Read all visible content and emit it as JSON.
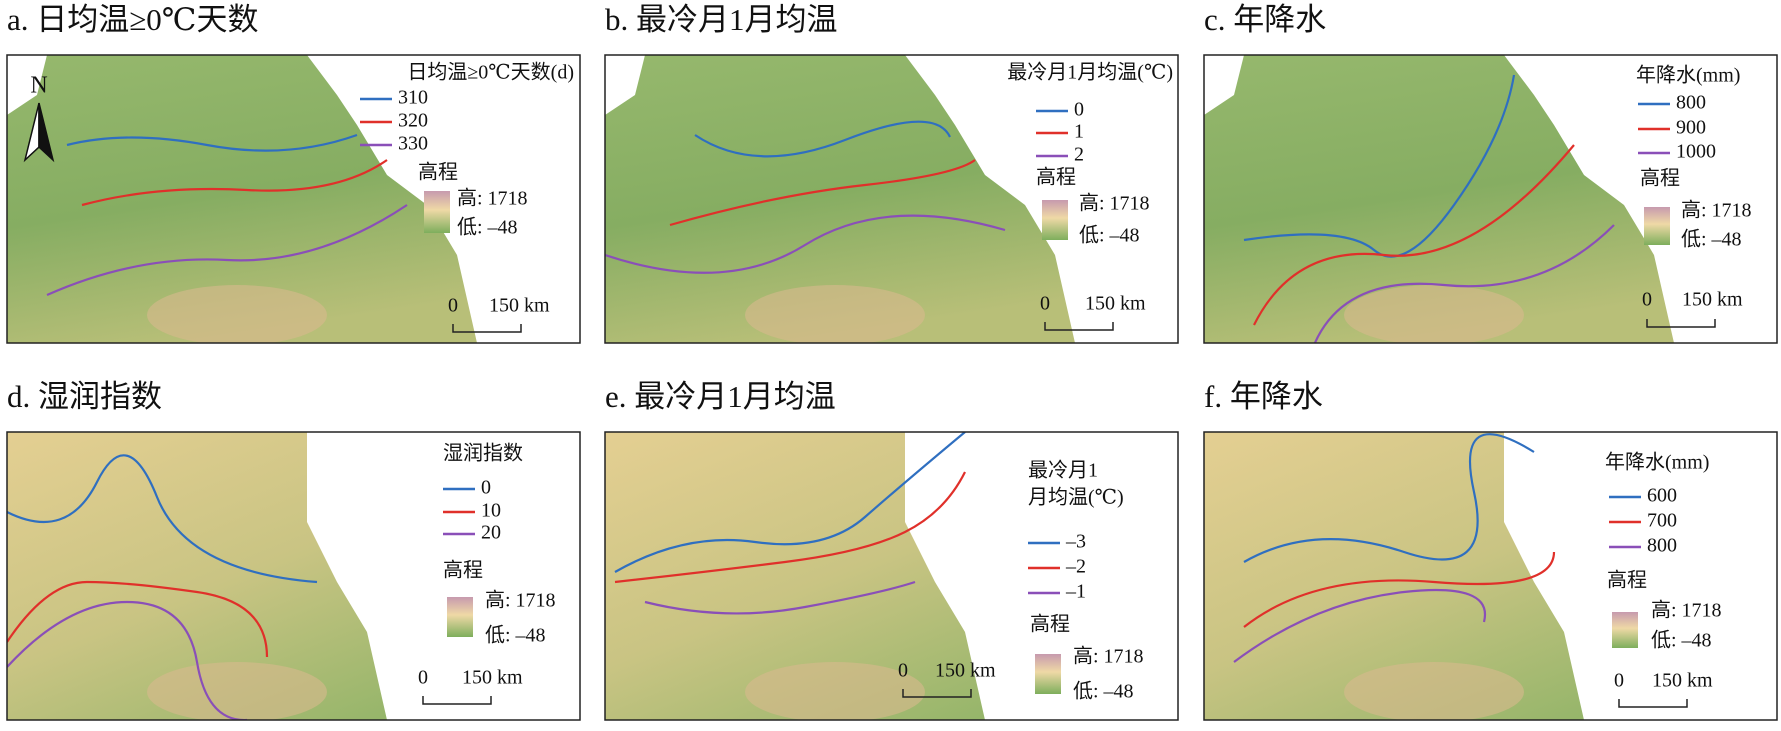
{
  "north": "N",
  "panels": [
    {
      "title": "a. 日均温≥0℃天数",
      "legend": {
        "title": [
          "日均温≥0℃天数(d)"
        ],
        "items": [
          {
            "label": "310",
            "color": "#2f6fc0"
          },
          {
            "label": "320",
            "color": "#e0302a"
          },
          {
            "label": "330",
            "color": "#8a4fb8"
          }
        ]
      },
      "elevation": {
        "title": "高程",
        "high": "高: 1718",
        "low": "低: –48"
      },
      "scale": {
        "zero": "0",
        "label": "150 km"
      }
    },
    {
      "title": "b. 最冷月1月均温",
      "legend": {
        "title": [
          "最冷月1月均温(℃)"
        ],
        "items": [
          {
            "label": "0",
            "color": "#2f6fc0"
          },
          {
            "label": "1",
            "color": "#e0302a"
          },
          {
            "label": "2",
            "color": "#8a4fb8"
          }
        ]
      },
      "elevation": {
        "title": "高程",
        "high": "高: 1718",
        "low": "低: –48"
      },
      "scale": {
        "zero": "0",
        "label": "150 km"
      }
    },
    {
      "title": "c. 年降水",
      "legend": {
        "title": [
          "年降水(mm)"
        ],
        "items": [
          {
            "label": "800",
            "color": "#2f6fc0"
          },
          {
            "label": "900",
            "color": "#e0302a"
          },
          {
            "label": "1000",
            "color": "#8a4fb8"
          }
        ]
      },
      "elevation": {
        "title": "高程",
        "high": "高: 1718",
        "low": "低: –48"
      },
      "scale": {
        "zero": "0",
        "label": "150 km"
      }
    },
    {
      "title": "d. 湿润指数",
      "legend": {
        "title": [
          "湿润指数"
        ],
        "items": [
          {
            "label": "0",
            "color": "#2f6fc0"
          },
          {
            "label": "10",
            "color": "#e0302a"
          },
          {
            "label": "20",
            "color": "#8a4fb8"
          }
        ]
      },
      "elevation": {
        "title": "高程",
        "high": "高: 1718",
        "low": "低: –48"
      },
      "scale": {
        "zero": "0",
        "label": "150 km"
      }
    },
    {
      "title": "e. 最冷月1月均温",
      "legend": {
        "title": [
          "最冷月1",
          "月均温(℃)"
        ],
        "items": [
          {
            "label": "–3",
            "color": "#2f6fc0"
          },
          {
            "label": "–2",
            "color": "#e0302a"
          },
          {
            "label": "–1",
            "color": "#8a4fb8"
          }
        ]
      },
      "elevation": {
        "title": "高程",
        "high": "高: 1718",
        "low": "低: –48"
      },
      "scale": {
        "zero": "0",
        "label": "150 km"
      }
    },
    {
      "title": "f. 年降水",
      "legend": {
        "title": [
          "年降水(mm)"
        ],
        "items": [
          {
            "label": "600",
            "color": "#2f6fc0"
          },
          {
            "label": "700",
            "color": "#e0302a"
          },
          {
            "label": "800",
            "color": "#8a4fb8"
          }
        ]
      },
      "elevation": {
        "title": "高程",
        "high": "高: 1718",
        "low": "低: –48"
      },
      "scale": {
        "zero": "0",
        "label": "150 km"
      }
    }
  ]
}
